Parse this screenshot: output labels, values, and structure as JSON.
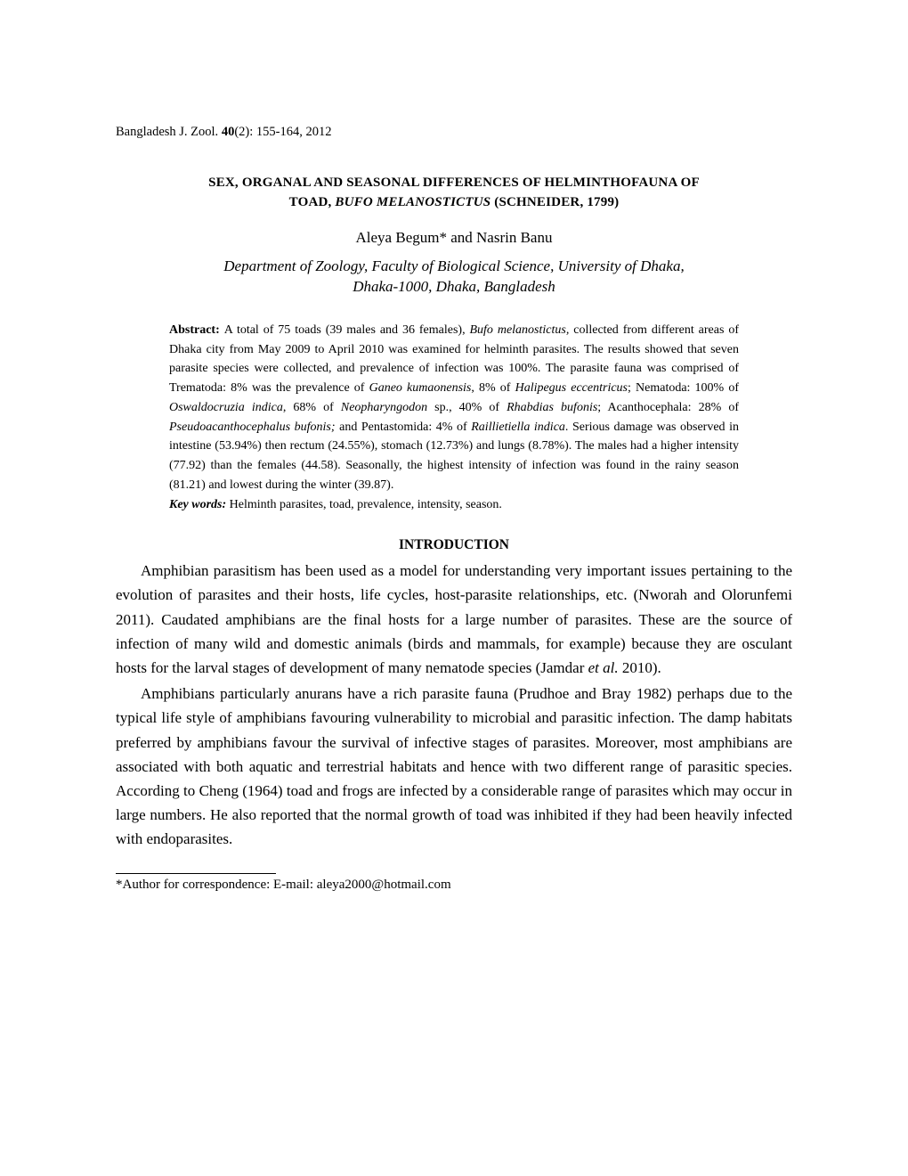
{
  "runningHead": {
    "journal": "Bangladesh J. Zool. ",
    "volumeBold": "40",
    "issuePages": "(2): 155-164, 2012"
  },
  "title": {
    "line1": "SEX, ORGANAL AND SEASONAL DIFFERENCES OF HELMINTHOFAUNA OF",
    "line2a": "TOAD, ",
    "line2italic": "BUFO MELANOSTICTUS ",
    "line2b": "(SCHNEIDER, 1799)"
  },
  "authors": "Aleya Begum* and Nasrin Banu",
  "affiliation": {
    "line1": "Department of Zoology, Faculty of Biological Science, University of Dhaka,",
    "line2": "Dhaka-1000, Dhaka, Bangladesh"
  },
  "abstract": {
    "label": "Abstract: ",
    "t1": "A total of 75 toads (39 males and 36 females), ",
    "i1": "Bufo melanostictus,",
    "t2": " collected from different areas of Dhaka city from May 2009 to April 2010 was examined for helminth parasites. The results showed that seven parasite species were collected, and prevalence of infection was 100%. The parasite fauna was comprised of Trematoda: 8% was the prevalence of ",
    "i2": "Ganeo kumaonensis",
    "t3": ", 8% of ",
    "i3": "Halipegus eccentricus",
    "t4": "; Nematoda: 100% of ",
    "i4": "Oswaldocruzia indica",
    "t5": ", 68% of ",
    "i5": "Neopharyngodon",
    "t6": " sp., 40% of ",
    "i6": "Rhabdias bufonis",
    "t7": "; Acanthocephala: 28% of ",
    "i7": "Pseudoacanthocephalus bufonis;",
    "t8": " and Pentastomida: 4% of ",
    "i8": "Raillietiella indica",
    "t9": ". Serious damage was observed in intestine (53.94%) then rectum (24.55%), stomach (12.73%) and lungs (8.78%). The males had a higher intensity (77.92) than the females (44.58). Seasonally, the highest intensity of infection was found in the rainy season (81.21) and lowest during the winter (39.87)."
  },
  "keywords": {
    "label": "Key words:",
    "text": " Helminth parasites, toad, prevalence, intensity, season."
  },
  "sectionHeading": "INTRODUCTION",
  "para1": {
    "t1": "Amphibian parasitism has been used as a model for understanding very important issues pertaining to the evolution of parasites and their hosts, life cycles, host-parasite relationships, etc. (Nworah and Olorunfemi 2011). Caudated amphibians are the final hosts for a large number of parasites. These are the source of infection of many wild and domestic animals (birds and mammals, for example) because they are osculant hosts for the larval stages of development of many nematode species (Jamdar ",
    "i1": "et al.",
    "t2": " 2010)."
  },
  "para2": {
    "t1": "Amphibians particularly anurans have a rich parasite fauna (Prudhoe and Bray 1982) perhaps due to the typical life style of amphibians favouring vulnerability to microbial and parasitic infection. The damp habitats preferred by amphibians favour the survival of infective stages of parasites. Moreover, most amphibians are associated with both aquatic and terrestrial habitats and hence with two different range of parasitic species. According to Cheng (1964) toad and frogs are infected by a considerable range of parasites which may occur in large numbers. He also reported that the normal growth of toad was inhibited if they had been heavily infected with endoparasites."
  },
  "footnote": "*Author for correspondence: E-mail: aleya2000@hotmail.com"
}
